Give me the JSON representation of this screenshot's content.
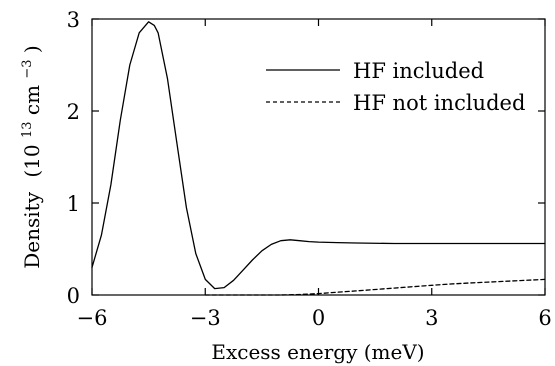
{
  "chart_data": {
    "type": "line",
    "xlabel": "Excess energy  (meV)",
    "ylabel": "Density",
    "ylabel_unit": "(10",
    "ylabel_exp": "13",
    "ylabel_unit2": " cm",
    "ylabel_exp2": "−3",
    "ylabel_close": ")",
    "xlim": [
      -6,
      6
    ],
    "ylim": [
      0,
      3
    ],
    "x_ticks": [
      -6,
      -3,
      0,
      3,
      6
    ],
    "x_tick_labels": [
      "−6",
      "−3",
      "0",
      "3",
      "6"
    ],
    "y_ticks": [
      0,
      1,
      2,
      3
    ],
    "y_tick_labels": [
      "0",
      "1",
      "2",
      "3"
    ],
    "grid": false,
    "legend_position": "top-right",
    "series": [
      {
        "name": "HF included",
        "style": "solid",
        "color": "#000000",
        "x": [
          -6.0,
          -5.75,
          -5.5,
          -5.25,
          -5.0,
          -4.75,
          -4.5,
          -4.35,
          -4.25,
          -4.0,
          -3.75,
          -3.5,
          -3.25,
          -3.0,
          -2.75,
          -2.5,
          -2.25,
          -2.0,
          -1.75,
          -1.5,
          -1.25,
          -1.0,
          -0.75,
          -0.5,
          -0.25,
          0.0,
          0.5,
          1.0,
          2.0,
          3.0,
          4.0,
          5.0,
          6.0
        ],
        "y": [
          0.3,
          0.65,
          1.2,
          1.9,
          2.5,
          2.85,
          2.97,
          2.93,
          2.85,
          2.35,
          1.65,
          0.95,
          0.45,
          0.17,
          0.07,
          0.08,
          0.16,
          0.27,
          0.38,
          0.48,
          0.55,
          0.59,
          0.6,
          0.59,
          0.58,
          0.575,
          0.57,
          0.565,
          0.56,
          0.56,
          0.56,
          0.56,
          0.56
        ]
      },
      {
        "name": "HF not included",
        "style": "dashed",
        "color": "#000000",
        "x": [
          -3.0,
          -2.5,
          -2.0,
          -1.5,
          -1.0,
          -0.5,
          0.0,
          0.5,
          1.0,
          1.5,
          2.0,
          2.5,
          3.0,
          3.5,
          4.0,
          4.5,
          5.0,
          5.5,
          6.0
        ],
        "y": [
          0.0,
          0.0,
          0.0,
          0.0,
          0.0,
          0.005,
          0.015,
          0.03,
          0.045,
          0.06,
          0.075,
          0.09,
          0.105,
          0.12,
          0.13,
          0.14,
          0.15,
          0.16,
          0.17
        ]
      }
    ]
  }
}
